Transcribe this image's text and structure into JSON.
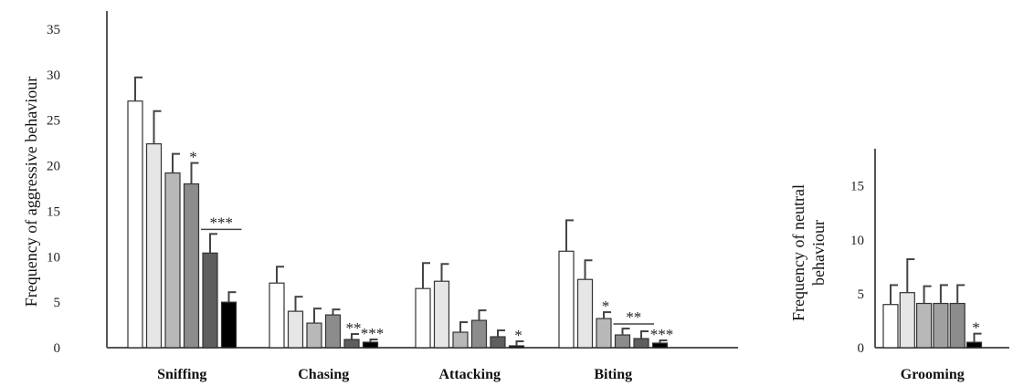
{
  "chart_data": [
    {
      "type": "bar",
      "ylabel": "Frequency of aggressive behaviour",
      "ylim": [
        0,
        35
      ],
      "yticks": [
        0,
        5,
        10,
        15,
        20,
        25,
        30,
        35
      ],
      "categories": [
        "Sniffing",
        "Chasing",
        "Attacking",
        "Biting"
      ],
      "series_colors": [
        "#ffffff",
        "#e6e6e6",
        "#b8b8b8",
        "#8c8c8c",
        "#5e5e5e",
        "#000000"
      ],
      "values": [
        [
          27.1,
          22.4,
          19.2,
          18.0,
          10.4,
          5.0
        ],
        [
          7.1,
          4.0,
          2.7,
          3.6,
          0.9,
          0.6
        ],
        [
          6.5,
          7.3,
          1.7,
          3.0,
          1.2,
          0.2
        ],
        [
          10.6,
          7.5,
          3.2,
          1.4,
          1.0,
          0.5
        ]
      ],
      "errors": [
        [
          2.6,
          3.6,
          2.1,
          2.3,
          2.1,
          1.1
        ],
        [
          1.8,
          1.6,
          1.6,
          0.6,
          0.6,
          0.3
        ],
        [
          2.8,
          1.9,
          1.1,
          1.1,
          0.7,
          0.5
        ],
        [
          3.4,
          2.1,
          0.7,
          0.7,
          0.8,
          0.3
        ]
      ],
      "significance": [
        {
          "category": 0,
          "bar": 3,
          "text": "*"
        },
        {
          "category": 0,
          "bars": [
            4,
            5
          ],
          "text": "***"
        },
        {
          "category": 1,
          "bar": 4,
          "text": "**"
        },
        {
          "category": 1,
          "bar": 5,
          "text": "***"
        },
        {
          "category": 2,
          "bar": 5,
          "text": "*"
        },
        {
          "category": 3,
          "bar": 2,
          "text": "*"
        },
        {
          "category": 3,
          "bars": [
            3,
            4
          ],
          "text": "**"
        },
        {
          "category": 3,
          "bar": 5,
          "text": "***"
        }
      ]
    },
    {
      "type": "bar",
      "ylabel": "Frequency of neutral behaviour",
      "ylim": [
        0,
        17
      ],
      "yticks": [
        0,
        5,
        10,
        15
      ],
      "categories": [
        "Grooming"
      ],
      "series_colors": [
        "#ffffff",
        "#e6e6e6",
        "#b8b8b8",
        "#a0a0a0",
        "#8c8c8c",
        "#000000"
      ],
      "values": [
        [
          4.0,
          5.1,
          4.1,
          4.1,
          4.1,
          0.5
        ]
      ],
      "errors": [
        [
          1.8,
          3.1,
          1.6,
          1.7,
          1.7,
          0.8
        ]
      ],
      "significance": [
        {
          "category": 0,
          "bar": 5,
          "text": "*"
        }
      ]
    }
  ]
}
